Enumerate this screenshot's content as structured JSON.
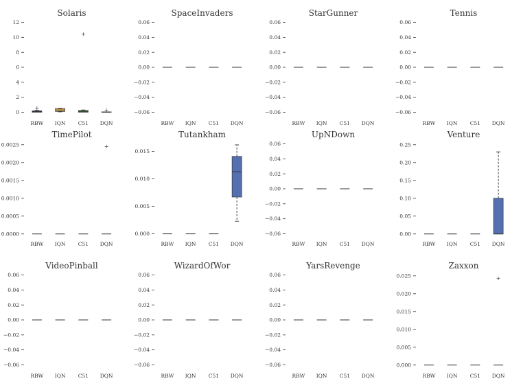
{
  "colors": {
    "box_blue": "#5470b0",
    "box_orange": "#e6b35a",
    "box_green": "#5aa05a",
    "box_navy": "#2b3a78",
    "line": "#333333",
    "text": "#333333"
  },
  "chart_data": [
    {
      "type": "box",
      "title": "Solaris",
      "categories": [
        "RBW",
        "IQN",
        "C51",
        "DQN"
      ],
      "yticks": [
        "0",
        "2",
        "4",
        "6",
        "8",
        "10",
        "12"
      ],
      "ylim": [
        -0.6,
        12.6
      ],
      "boxes": [
        {
          "label": "RBW",
          "q1": 0.0,
          "median": 0.08,
          "q3": 0.18,
          "whisker_low": 0.0,
          "whisker_high": 0.25,
          "outliers": [
            0.55
          ],
          "color": "#2b3a78"
        },
        {
          "label": "IQN",
          "q1": 0.1,
          "median": 0.3,
          "q3": 0.5,
          "whisker_low": 0.05,
          "whisker_high": 0.55,
          "outliers": [],
          "color": "#e6b35a"
        },
        {
          "label": "C51",
          "q1": 0.0,
          "median": 0.1,
          "q3": 0.25,
          "whisker_low": 0.0,
          "whisker_high": 0.3,
          "outliers": [
            10.4
          ],
          "color": "#5aa05a"
        },
        {
          "label": "DQN",
          "q1": 0.0,
          "median": 0.0,
          "q3": 0.05,
          "whisker_low": 0.0,
          "whisker_high": 0.05,
          "outliers": [
            0.25
          ],
          "color": "#5470b0"
        }
      ]
    },
    {
      "type": "box",
      "title": "SpaceInvaders",
      "categories": [
        "RBW",
        "IQN",
        "C51",
        "DQN"
      ],
      "yticks": [
        "−0.06",
        "−0.04",
        "−0.02",
        "0.00",
        "0.02",
        "0.04",
        "0.06"
      ],
      "ylim": [
        -0.066,
        0.066
      ],
      "boxes": [
        {
          "label": "RBW",
          "q1": 0,
          "median": 0,
          "q3": 0,
          "whisker_low": 0,
          "whisker_high": 0,
          "outliers": [],
          "color": "#5470b0"
        },
        {
          "label": "IQN",
          "q1": 0,
          "median": 0,
          "q3": 0,
          "whisker_low": 0,
          "whisker_high": 0,
          "outliers": [],
          "color": "#5470b0"
        },
        {
          "label": "C51",
          "q1": 0,
          "median": 0,
          "q3": 0,
          "whisker_low": 0,
          "whisker_high": 0,
          "outliers": [],
          "color": "#5470b0"
        },
        {
          "label": "DQN",
          "q1": 0,
          "median": 0,
          "q3": 0,
          "whisker_low": 0,
          "whisker_high": 0,
          "outliers": [],
          "color": "#5470b0"
        }
      ]
    },
    {
      "type": "box",
      "title": "StarGunner",
      "categories": [
        "RBW",
        "IQN",
        "C51",
        "DQN"
      ],
      "yticks": [
        "−0.06",
        "−0.04",
        "−0.02",
        "0.00",
        "0.02",
        "0.04",
        "0.06"
      ],
      "ylim": [
        -0.066,
        0.066
      ],
      "boxes": [
        {
          "label": "RBW",
          "q1": 0,
          "median": 0,
          "q3": 0,
          "whisker_low": 0,
          "whisker_high": 0,
          "outliers": [],
          "color": "#5470b0"
        },
        {
          "label": "IQN",
          "q1": 0,
          "median": 0,
          "q3": 0,
          "whisker_low": 0,
          "whisker_high": 0,
          "outliers": [],
          "color": "#5470b0"
        },
        {
          "label": "C51",
          "q1": 0,
          "median": 0,
          "q3": 0,
          "whisker_low": 0,
          "whisker_high": 0,
          "outliers": [],
          "color": "#5470b0"
        },
        {
          "label": "DQN",
          "q1": 0,
          "median": 0,
          "q3": 0,
          "whisker_low": 0,
          "whisker_high": 0,
          "outliers": [],
          "color": "#5470b0"
        }
      ]
    },
    {
      "type": "box",
      "title": "Tennis",
      "categories": [
        "RBW",
        "IQN",
        "C51",
        "DQN"
      ],
      "yticks": [
        "−0.06",
        "−0.04",
        "−0.02",
        "0.00",
        "0.02",
        "0.04",
        "0.06"
      ],
      "ylim": [
        -0.066,
        0.066
      ],
      "boxes": [
        {
          "label": "RBW",
          "q1": 0,
          "median": 0,
          "q3": 0,
          "whisker_low": 0,
          "whisker_high": 0,
          "outliers": [],
          "color": "#5470b0"
        },
        {
          "label": "IQN",
          "q1": 0,
          "median": 0,
          "q3": 0,
          "whisker_low": 0,
          "whisker_high": 0,
          "outliers": [],
          "color": "#5470b0"
        },
        {
          "label": "C51",
          "q1": 0,
          "median": 0,
          "q3": 0,
          "whisker_low": 0,
          "whisker_high": 0,
          "outliers": [],
          "color": "#5470b0"
        },
        {
          "label": "DQN",
          "q1": 0,
          "median": 0,
          "q3": 0,
          "whisker_low": 0,
          "whisker_high": 0,
          "outliers": [],
          "color": "#5470b0"
        }
      ]
    },
    {
      "type": "box",
      "title": "TimePilot",
      "categories": [
        "RBW",
        "IQN",
        "C51",
        "DQN"
      ],
      "yticks": [
        "0.0000",
        "0.0005",
        "0.0010",
        "0.0015",
        "0.0020",
        "0.0025"
      ],
      "ylim": [
        -0.00012,
        0.00265
      ],
      "boxes": [
        {
          "label": "RBW",
          "q1": 0,
          "median": 0,
          "q3": 0,
          "whisker_low": 0,
          "whisker_high": 0,
          "outliers": [],
          "color": "#5470b0"
        },
        {
          "label": "IQN",
          "q1": 0,
          "median": 0,
          "q3": 0,
          "whisker_low": 0,
          "whisker_high": 0,
          "outliers": [],
          "color": "#5470b0"
        },
        {
          "label": "C51",
          "q1": 0,
          "median": 0,
          "q3": 0,
          "whisker_low": 0,
          "whisker_high": 0,
          "outliers": [],
          "color": "#5470b0"
        },
        {
          "label": "DQN",
          "q1": 0,
          "median": 0,
          "q3": 0,
          "whisker_low": 0,
          "whisker_high": 0,
          "outliers": [
            0.00245
          ],
          "color": "#5470b0"
        }
      ]
    },
    {
      "type": "box",
      "title": "Tutankham",
      "categories": [
        "RBW",
        "IQN",
        "C51",
        "DQN"
      ],
      "yticks": [
        "0.000",
        "0.005",
        "0.010",
        "0.015"
      ],
      "ylim": [
        -0.0008,
        0.0172
      ],
      "boxes": [
        {
          "label": "RBW",
          "q1": 0,
          "median": 0,
          "q3": 0,
          "whisker_low": 0,
          "whisker_high": 0,
          "outliers": [],
          "color": "#5470b0"
        },
        {
          "label": "IQN",
          "q1": 0,
          "median": 0,
          "q3": 0,
          "whisker_low": 0,
          "whisker_high": 0,
          "outliers": [],
          "color": "#5470b0"
        },
        {
          "label": "C51",
          "q1": 0,
          "median": 0,
          "q3": 0,
          "whisker_low": 0,
          "whisker_high": 0,
          "outliers": [],
          "color": "#5470b0"
        },
        {
          "label": "DQN",
          "q1": 0.0067,
          "median": 0.0113,
          "q3": 0.0141,
          "whisker_low": 0.0023,
          "whisker_high": 0.0162,
          "outliers": [],
          "color": "#5470b0"
        }
      ]
    },
    {
      "type": "box",
      "title": "UpNDown",
      "categories": [
        "RBW",
        "IQN",
        "C51",
        "DQN"
      ],
      "yticks": [
        "−0.06",
        "−0.04",
        "−0.02",
        "0.00",
        "0.02",
        "0.04",
        "0.06"
      ],
      "ylim": [
        -0.066,
        0.066
      ],
      "boxes": [
        {
          "label": "RBW",
          "q1": 0,
          "median": 0,
          "q3": 0,
          "whisker_low": 0,
          "whisker_high": 0,
          "outliers": [],
          "color": "#5470b0"
        },
        {
          "label": "IQN",
          "q1": 0,
          "median": 0,
          "q3": 0,
          "whisker_low": 0,
          "whisker_high": 0,
          "outliers": [],
          "color": "#5470b0"
        },
        {
          "label": "C51",
          "q1": 0,
          "median": 0,
          "q3": 0,
          "whisker_low": 0,
          "whisker_high": 0,
          "outliers": [],
          "color": "#5470b0"
        },
        {
          "label": "DQN",
          "q1": 0,
          "median": 0,
          "q3": 0,
          "whisker_low": 0,
          "whisker_high": 0,
          "outliers": [],
          "color": "#5470b0"
        }
      ]
    },
    {
      "type": "box",
      "title": "Venture",
      "categories": [
        "RBW",
        "IQN",
        "C51",
        "DQN"
      ],
      "yticks": [
        "0.00",
        "0.05",
        "0.10",
        "0.15",
        "0.20",
        "0.25"
      ],
      "ylim": [
        -0.012,
        0.265
      ],
      "boxes": [
        {
          "label": "RBW",
          "q1": 0,
          "median": 0,
          "q3": 0,
          "whisker_low": 0,
          "whisker_high": 0,
          "outliers": [],
          "color": "#5470b0"
        },
        {
          "label": "IQN",
          "q1": 0,
          "median": 0,
          "q3": 0,
          "whisker_low": 0,
          "whisker_high": 0,
          "outliers": [],
          "color": "#5470b0"
        },
        {
          "label": "C51",
          "q1": 0,
          "median": 0,
          "q3": 0,
          "whisker_low": 0,
          "whisker_high": 0,
          "outliers": [],
          "color": "#5470b0"
        },
        {
          "label": "DQN",
          "q1": 0.0,
          "median": 0.0,
          "q3": 0.1,
          "whisker_low": 0.0,
          "whisker_high": 0.23,
          "outliers": [],
          "color": "#5470b0"
        }
      ]
    },
    {
      "type": "box",
      "title": "VideoPinball",
      "categories": [
        "RBW",
        "IQN",
        "C51",
        "DQN"
      ],
      "yticks": [
        "−0.06",
        "−0.04",
        "−0.02",
        "0.00",
        "0.02",
        "0.04",
        "0.06"
      ],
      "ylim": [
        -0.066,
        0.066
      ],
      "boxes": [
        {
          "label": "RBW",
          "q1": 0,
          "median": 0,
          "q3": 0,
          "whisker_low": 0,
          "whisker_high": 0,
          "outliers": [],
          "color": "#5470b0"
        },
        {
          "label": "IQN",
          "q1": 0,
          "median": 0,
          "q3": 0,
          "whisker_low": 0,
          "whisker_high": 0,
          "outliers": [],
          "color": "#5470b0"
        },
        {
          "label": "C51",
          "q1": 0,
          "median": 0,
          "q3": 0,
          "whisker_low": 0,
          "whisker_high": 0,
          "outliers": [],
          "color": "#5470b0"
        },
        {
          "label": "DQN",
          "q1": 0,
          "median": 0,
          "q3": 0,
          "whisker_low": 0,
          "whisker_high": 0,
          "outliers": [],
          "color": "#5470b0"
        }
      ]
    },
    {
      "type": "box",
      "title": "WizardOfWor",
      "categories": [
        "RBW",
        "IQN",
        "C51",
        "DQN"
      ],
      "yticks": [
        "−0.06",
        "−0.04",
        "−0.02",
        "0.00",
        "0.02",
        "0.04",
        "0.06"
      ],
      "ylim": [
        -0.066,
        0.066
      ],
      "boxes": [
        {
          "label": "RBW",
          "q1": 0,
          "median": 0,
          "q3": 0,
          "whisker_low": 0,
          "whisker_high": 0,
          "outliers": [],
          "color": "#5470b0"
        },
        {
          "label": "IQN",
          "q1": 0,
          "median": 0,
          "q3": 0,
          "whisker_low": 0,
          "whisker_high": 0,
          "outliers": [],
          "color": "#5470b0"
        },
        {
          "label": "C51",
          "q1": 0,
          "median": 0,
          "q3": 0,
          "whisker_low": 0,
          "whisker_high": 0,
          "outliers": [],
          "color": "#5470b0"
        },
        {
          "label": "DQN",
          "q1": 0,
          "median": 0,
          "q3": 0,
          "whisker_low": 0,
          "whisker_high": 0,
          "outliers": [],
          "color": "#5470b0"
        }
      ]
    },
    {
      "type": "box",
      "title": "YarsRevenge",
      "categories": [
        "RBW",
        "IQN",
        "C51",
        "DQN"
      ],
      "yticks": [
        "−0.06",
        "−0.04",
        "−0.02",
        "0.00",
        "0.02",
        "0.04",
        "0.06"
      ],
      "ylim": [
        -0.066,
        0.066
      ],
      "boxes": [
        {
          "label": "RBW",
          "q1": 0,
          "median": 0,
          "q3": 0,
          "whisker_low": 0,
          "whisker_high": 0,
          "outliers": [],
          "color": "#5470b0"
        },
        {
          "label": "IQN",
          "q1": 0,
          "median": 0,
          "q3": 0,
          "whisker_low": 0,
          "whisker_high": 0,
          "outliers": [],
          "color": "#5470b0"
        },
        {
          "label": "C51",
          "q1": 0,
          "median": 0,
          "q3": 0,
          "whisker_low": 0,
          "whisker_high": 0,
          "outliers": [],
          "color": "#5470b0"
        },
        {
          "label": "DQN",
          "q1": 0,
          "median": 0,
          "q3": 0,
          "whisker_low": 0,
          "whisker_high": 0,
          "outliers": [],
          "color": "#5470b0"
        }
      ]
    },
    {
      "type": "box",
      "title": "Zaxxon",
      "categories": [
        "RBW",
        "IQN",
        "C51",
        "DQN"
      ],
      "yticks": [
        "0.000",
        "0.005",
        "0.010",
        "0.015",
        "0.020",
        "0.025"
      ],
      "ylim": [
        -0.0012,
        0.0265
      ],
      "boxes": [
        {
          "label": "RBW",
          "q1": 0,
          "median": 0,
          "q3": 0,
          "whisker_low": 0,
          "whisker_high": 0,
          "outliers": [],
          "color": "#5470b0"
        },
        {
          "label": "IQN",
          "q1": 0,
          "median": 0,
          "q3": 0,
          "whisker_low": 0,
          "whisker_high": 0,
          "outliers": [],
          "color": "#5470b0"
        },
        {
          "label": "C51",
          "q1": 0,
          "median": 0,
          "q3": 0,
          "whisker_low": 0,
          "whisker_high": 0,
          "outliers": [],
          "color": "#5470b0"
        },
        {
          "label": "DQN",
          "q1": 0,
          "median": 0,
          "q3": 0,
          "whisker_low": 0,
          "whisker_high": 0,
          "outliers": [
            0.0243
          ],
          "color": "#5470b0"
        }
      ]
    }
  ]
}
